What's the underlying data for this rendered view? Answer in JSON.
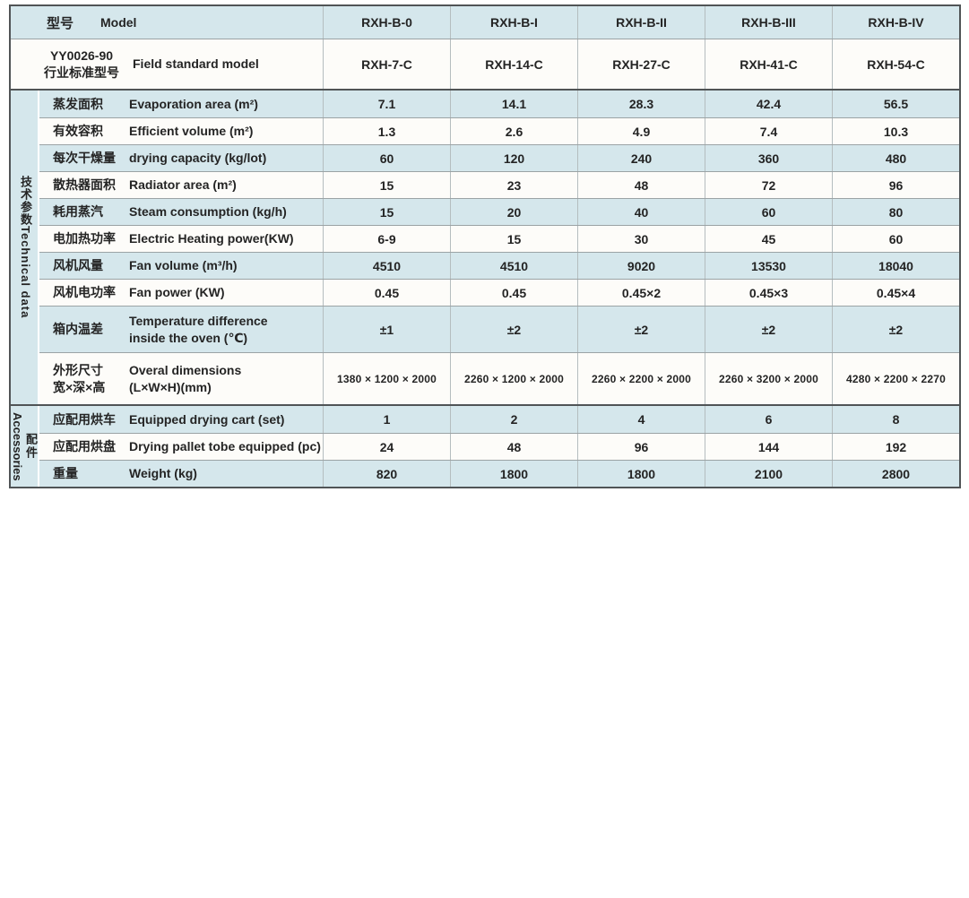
{
  "colors": {
    "row_blue": "#d5e7ec",
    "row_white": "#fdfcf9",
    "border_dark": "#505456",
    "border_mid": "#9ba3a5",
    "border_light": "#b5bdbf",
    "text": "#242424"
  },
  "header": {
    "model_row": {
      "zh": "型号",
      "en": "Model",
      "values": [
        "RXH-B-0",
        "RXH-B-I",
        "RXH-B-II",
        "RXH-B-III",
        "RXH-B-IV"
      ]
    },
    "standard_row": {
      "zh": "YY0026-90\n行业标准型号",
      "en": "Field standard model",
      "values": [
        "RXH-7-C",
        "RXH-14-C",
        "RXH-27-C",
        "RXH-41-C",
        "RXH-54-C"
      ]
    }
  },
  "sections": [
    {
      "label_zh": "技术参数",
      "label_en": "Technical data",
      "rows": [
        {
          "zh": "蒸发面积",
          "en": "Evaporation area (m²)",
          "values": [
            "7.1",
            "14.1",
            "28.3",
            "42.4",
            "56.5"
          ]
        },
        {
          "zh": "有效容积",
          "en": "Efficient volume (m²)",
          "values": [
            "1.3",
            "2.6",
            "4.9",
            "7.4",
            "10.3"
          ]
        },
        {
          "zh": "每次干燥量",
          "en": "drying capacity (kg/lot)",
          "values": [
            "60",
            "120",
            "240",
            "360",
            "480"
          ]
        },
        {
          "zh": "散热器面积",
          "en": "Radiator area (m²)",
          "values": [
            "15",
            "23",
            "48",
            "72",
            "96"
          ]
        },
        {
          "zh": "耗用蒸汽",
          "en": "Steam consumption (kg/h)",
          "values": [
            "15",
            "20",
            "40",
            "60",
            "80"
          ]
        },
        {
          "zh": "电加热功率",
          "en": "Electric Heating power(KW)",
          "values": [
            "6-9",
            "15",
            "30",
            "45",
            "60"
          ]
        },
        {
          "zh": "风机风量",
          "en": "Fan volume (m³/h)",
          "values": [
            "4510",
            "4510",
            "9020",
            "13530",
            "18040"
          ]
        },
        {
          "zh": "风机电功率",
          "en": "Fan power (KW)",
          "values": [
            "0.45",
            "0.45",
            "0.45×2",
            "0.45×3",
            "0.45×4"
          ]
        },
        {
          "zh": "箱内温差",
          "en": "Temperature difference\ninside the oven (℃)",
          "values": [
            "±1",
            "±2",
            "±2",
            "±2",
            "±2"
          ]
        },
        {
          "zh": "外形尺寸\n宽×深×高",
          "en": "Overal dimensions\n(L×W×H)(mm)",
          "small_values": true,
          "values": [
            "1380 × 1200 × 2000",
            "2260 × 1200 × 2000",
            "2260 × 2200 × 2000",
            "2260 × 3200 × 2000",
            "4280 × 2200 × 2270"
          ]
        }
      ]
    },
    {
      "label_zh": "配件",
      "label_en": "Accessories",
      "rows": [
        {
          "zh": "应配用烘车",
          "en": "Equipped drying cart (set)",
          "values": [
            "1",
            "2",
            "4",
            "6",
            "8"
          ]
        },
        {
          "zh": "应配用烘盘",
          "en": "Drying pallet tobe equipped (pc)",
          "values": [
            "24",
            "48",
            "96",
            "144",
            "192"
          ]
        },
        {
          "zh": "重量",
          "en": "Weight (kg)",
          "values": [
            "820",
            "1800",
            "1800",
            "2100",
            "2800"
          ]
        }
      ]
    }
  ]
}
